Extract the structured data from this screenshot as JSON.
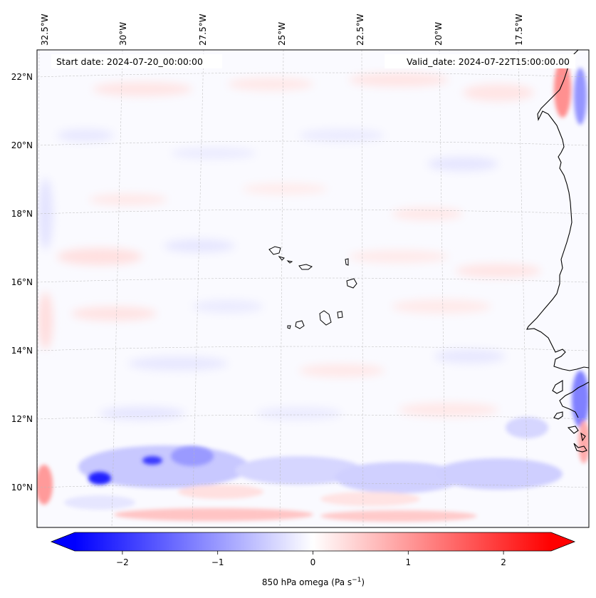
{
  "map": {
    "start_label": "Start date: 2024-07-20_00:00:00",
    "valid_label": "Valid_date: 2024-07-22T15:00:00.00",
    "lon_labels": [
      "32.5°W",
      "30°W",
      "27.5°W",
      "25°W",
      "22.5°W",
      "20°W",
      "17.5°W"
    ],
    "lat_labels": [
      "22°N",
      "20°N",
      "18°N",
      "16°N",
      "14°N",
      "12°N",
      "10°N"
    ],
    "colorbar": {
      "ticks": [
        "−2",
        "−1",
        "0",
        "1",
        "2"
      ],
      "tick_values": [
        -2,
        -1,
        0,
        1,
        2
      ],
      "range": [
        -2.5,
        2.5
      ],
      "label_text": "850 hPa omega (Pa s",
      "label_exp": "−1",
      "label_close": ")",
      "colormap": "bwr",
      "extend": "both"
    },
    "colors": {
      "negative": "#0000ff",
      "zero": "#ffffff",
      "positive": "#ff0000"
    },
    "islands": "Cape Verde",
    "coast": "West Africa"
  }
}
